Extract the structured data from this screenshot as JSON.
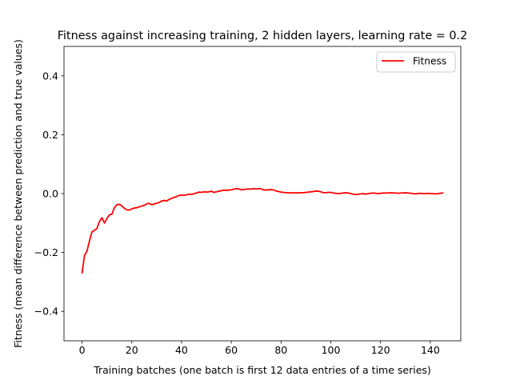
{
  "chart_data": {
    "type": "line",
    "title": "Fitness against increasing training, 2 hidden layers, learning rate = 0.2",
    "xlabel": "Training batches (one batch is first 12 data entries of a time series)",
    "ylabel": "Fitness (mean difference between prediction and true values)",
    "xlim": [
      -7.25,
      152.25
    ],
    "ylim": [
      -0.5,
      0.5
    ],
    "xticks": [
      0,
      20,
      40,
      60,
      80,
      100,
      120,
      140
    ],
    "yticks": [
      -0.4,
      -0.2,
      0.0,
      0.2,
      0.4
    ],
    "xtick_labels": [
      "0",
      "20",
      "40",
      "60",
      "80",
      "100",
      "120",
      "140"
    ],
    "ytick_labels": [
      "−0.4",
      "−0.2",
      "0.0",
      "0.2",
      "0.4"
    ],
    "grid": false,
    "legend_position": "upper right",
    "series": [
      {
        "name": "Fitness",
        "color": "#ff0000",
        "x": [
          0,
          1,
          2,
          3,
          4,
          5,
          6,
          7,
          8,
          9,
          10,
          11,
          12,
          13,
          14,
          15,
          16,
          17,
          18,
          19,
          20,
          21,
          22,
          23,
          24,
          25,
          26,
          27,
          28,
          29,
          30,
          31,
          32,
          33,
          34,
          35,
          36,
          37,
          38,
          39,
          40,
          41,
          42,
          43,
          44,
          45,
          46,
          47,
          48,
          49,
          50,
          51,
          52,
          53,
          54,
          55,
          56,
          57,
          58,
          59,
          60,
          61,
          62,
          63,
          64,
          65,
          66,
          67,
          68,
          69,
          70,
          71,
          72,
          73,
          74,
          75,
          76,
          77,
          78,
          79,
          80,
          81,
          82,
          83,
          84,
          85,
          86,
          87,
          88,
          89,
          90,
          91,
          92,
          93,
          94,
          95,
          96,
          97,
          98,
          99,
          100,
          101,
          102,
          103,
          104,
          105,
          106,
          107,
          108,
          109,
          110,
          111,
          112,
          113,
          114,
          115,
          116,
          117,
          118,
          119,
          120,
          121,
          122,
          123,
          124,
          125,
          126,
          127,
          128,
          129,
          130,
          131,
          132,
          133,
          134,
          135,
          136,
          137,
          138,
          139,
          140,
          141,
          142,
          143,
          144,
          145
        ],
        "y": [
          -0.27,
          -0.21,
          -0.195,
          -0.16,
          -0.13,
          -0.125,
          -0.118,
          -0.095,
          -0.082,
          -0.1,
          -0.085,
          -0.072,
          -0.07,
          -0.048,
          -0.038,
          -0.036,
          -0.042,
          -0.05,
          -0.055,
          -0.056,
          -0.052,
          -0.049,
          -0.048,
          -0.045,
          -0.042,
          -0.04,
          -0.035,
          -0.033,
          -0.038,
          -0.035,
          -0.033,
          -0.03,
          -0.025,
          -0.023,
          -0.025,
          -0.02,
          -0.016,
          -0.013,
          -0.01,
          -0.006,
          -0.005,
          -0.006,
          -0.004,
          -0.002,
          -0.003,
          0.0,
          0.002,
          0.005,
          0.004,
          0.006,
          0.005,
          0.006,
          0.008,
          0.004,
          0.006,
          0.008,
          0.01,
          0.012,
          0.011,
          0.012,
          0.013,
          0.015,
          0.017,
          0.016,
          0.013,
          0.014,
          0.015,
          0.016,
          0.015,
          0.017,
          0.016,
          0.017,
          0.016,
          0.013,
          0.012,
          0.013,
          0.014,
          0.012,
          0.009,
          0.007,
          0.005,
          0.004,
          0.003,
          0.003,
          0.002,
          0.003,
          0.002,
          0.003,
          0.003,
          0.003,
          0.004,
          0.005,
          0.006,
          0.007,
          0.009,
          0.008,
          0.006,
          0.003,
          0.003,
          0.004,
          0.004,
          0.002,
          0.001,
          0.0,
          0.001,
          0.002,
          0.003,
          0.002,
          0.0,
          -0.002,
          -0.003,
          -0.002,
          -0.001,
          0.0,
          -0.002,
          0.0,
          0.001,
          0.002,
          0.001,
          0.0,
          0.001,
          0.002,
          0.002,
          0.002,
          0.003,
          0.002,
          0.002,
          0.001,
          0.002,
          0.002,
          0.003,
          0.002,
          0.001,
          0.0,
          -0.001,
          0.0,
          0.001,
          0.0,
          0.0,
          0.001,
          0.0,
          0.0,
          -0.001,
          0.0,
          0.001,
          0.002
        ]
      }
    ]
  }
}
